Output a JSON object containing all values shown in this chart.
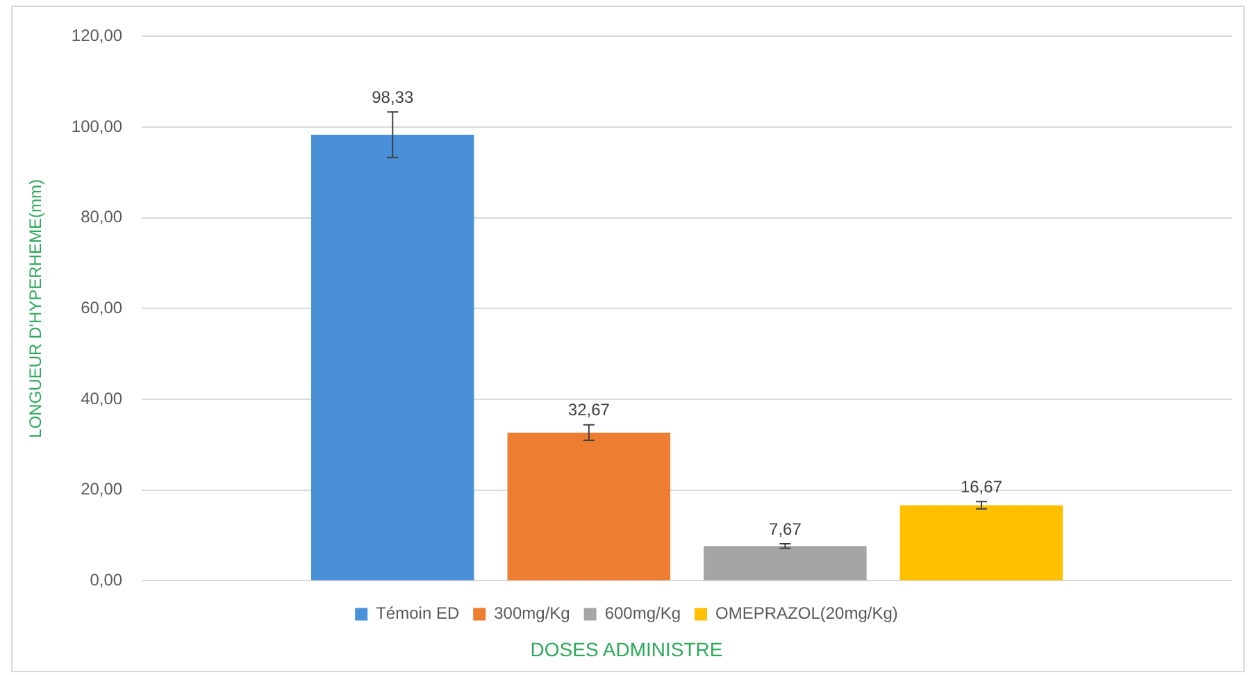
{
  "chart_data": {
    "type": "bar",
    "categories": [
      null
    ],
    "ylabel": "LONGUEUR D'HYPERHEME(mm)",
    "xlabel": "DOSES ADMINISTRE",
    "series": [
      {
        "name": "Témoin ED",
        "color": "#4a90d9",
        "values": [
          98.33
        ],
        "errors": [
          5
        ],
        "value_labels": [
          "98,33"
        ]
      },
      {
        "name": "300mg/Kg",
        "color": "#ed7d31",
        "values": [
          32.67
        ],
        "errors": [
          1.7
        ],
        "value_labels": [
          "32,67"
        ]
      },
      {
        "name": "600mg/Kg",
        "color": "#a5a5a5",
        "values": [
          7.67
        ],
        "errors": [
          0.5
        ],
        "value_labels": [
          "7,67"
        ]
      },
      {
        "name": "OMEPRAZOL(20mg/Kg)",
        "color": "#ffc000",
        "values": [
          16.67
        ],
        "errors": [
          0.8
        ],
        "value_labels": [
          "16,67"
        ]
      }
    ],
    "ylim": [
      0,
      120
    ],
    "yticks": [
      {
        "value": 0,
        "label": "0,00"
      },
      {
        "value": 20,
        "label": "20,00"
      },
      {
        "value": 40,
        "label": "40,00"
      },
      {
        "value": 60,
        "label": "60,00"
      },
      {
        "value": 80,
        "label": "80,00"
      },
      {
        "value": 100,
        "label": "100,00"
      },
      {
        "value": 120,
        "label": "120,00"
      }
    ],
    "grid": "y",
    "legend": "bottom"
  }
}
